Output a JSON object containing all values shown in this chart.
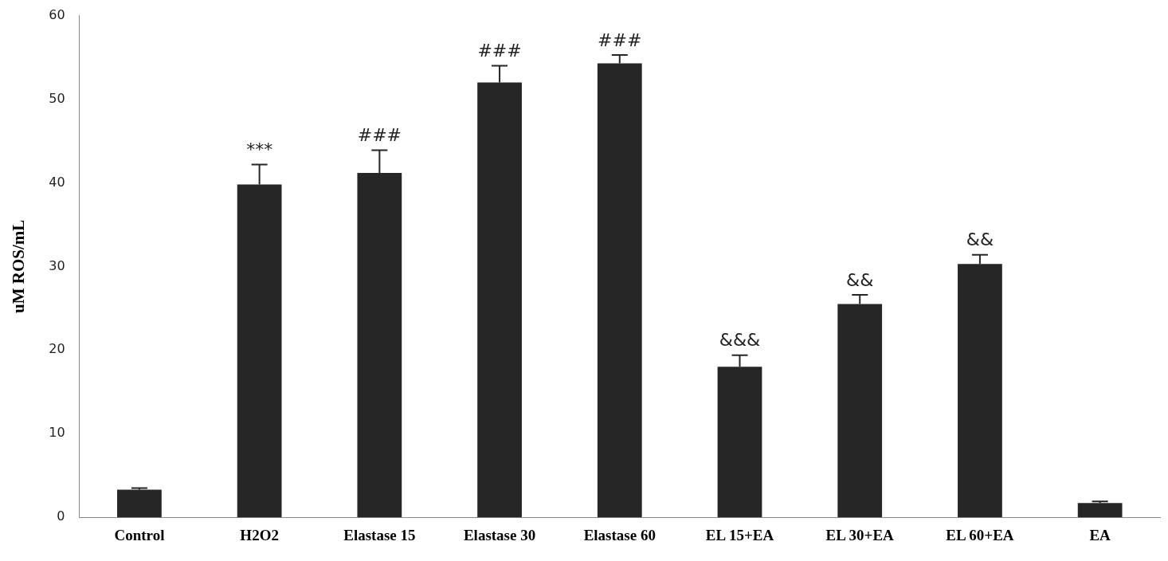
{
  "chart_data": {
    "type": "bar",
    "ylabel": "uM ROS/mL",
    "categories": [
      "Control",
      "H2O2",
      "Elastase 15",
      "Elastase 30",
      "Elastase 60",
      "EL 15+EA",
      "EL 30+EA",
      "EL 60+EA",
      "EA"
    ],
    "values": [
      3.3,
      39.8,
      41.2,
      52.0,
      54.3,
      18.0,
      25.5,
      30.3,
      1.7
    ],
    "errors": [
      [
        3.3,
        3.5
      ],
      [
        39.8,
        42.2
      ],
      [
        41.2,
        43.9
      ],
      [
        52.0,
        54.0
      ],
      [
        54.3,
        55.3
      ],
      [
        18.0,
        19.4
      ],
      [
        25.5,
        26.6
      ],
      [
        30.3,
        31.4
      ],
      [
        1.7,
        1.9
      ]
    ],
    "color": "#262626",
    "ylim": [
      0,
      60
    ],
    "yticks": [
      0,
      10,
      20,
      30,
      40,
      50,
      60
    ],
    "grid": false,
    "legend": false,
    "annotations": [
      {
        "text": "***",
        "x": "H2O2",
        "y": 42.2
      },
      {
        "text": "###",
        "x": "Elastase 15",
        "y": 43.9
      },
      {
        "text": "###",
        "x": "Elastase 30",
        "y": 54.0
      },
      {
        "text": "###",
        "x": "Elastase 60",
        "y": 55.3
      },
      {
        "text": "&&&",
        "x": "EL 15+EA",
        "y": 19.4
      },
      {
        "text": "&&",
        "x": "EL 30+EA",
        "y": 26.6
      },
      {
        "text": "&&",
        "x": "EL 60+EA",
        "y": 31.4
      }
    ]
  }
}
